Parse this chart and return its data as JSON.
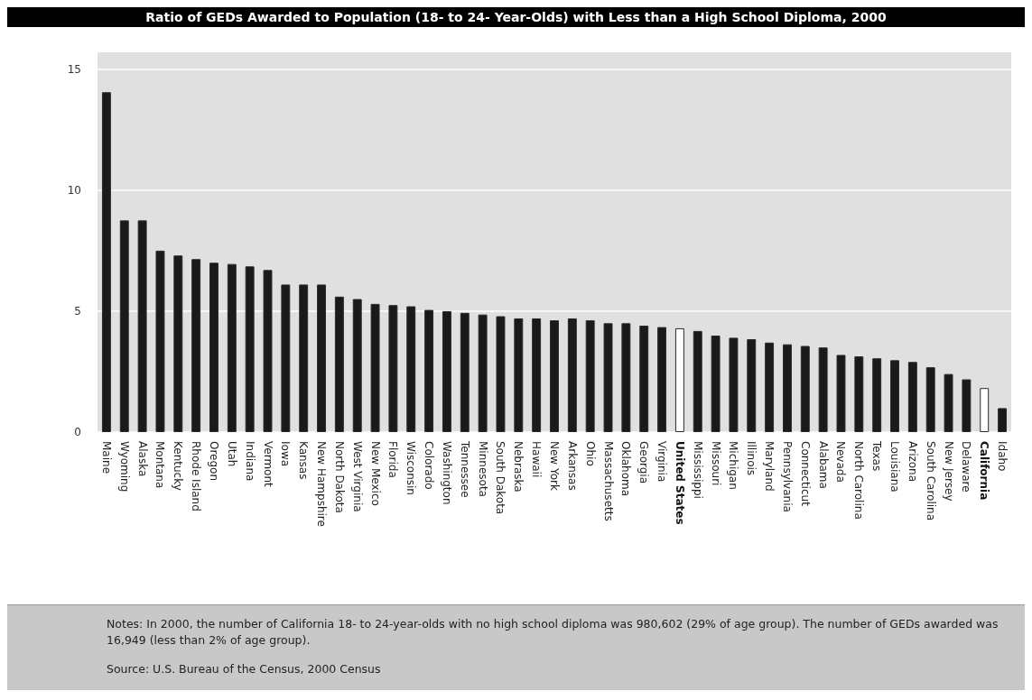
{
  "chart_data": {
    "type": "bar",
    "title": "Ratio of GEDs Awarded to Population (18- to 24- Year-Olds) with Less than a High School Diploma, 2000",
    "categories": [
      "Maine",
      "Wyoming",
      "Alaska",
      "Montana",
      "Kentucky",
      "Rhode Island",
      "Oregon",
      "Utah",
      "Indiana",
      "Vermont",
      "Iowa",
      "Kansas",
      "New Hampshire",
      "North Dakota",
      "West Virginia",
      "New Mexico",
      "Florida",
      "Wisconsin",
      "Colorado",
      "Washington",
      "Tennessee",
      "Minnesota",
      "South Dakota",
      "Nebraska",
      "Hawaii",
      "New York",
      "Arkansas",
      "Ohio",
      "Massachusetts",
      "Oklahoma",
      "Georgia",
      "Virginia",
      "United States",
      "Mississippi",
      "Missouri",
      "Michigan",
      "Illinois",
      "Maryland",
      "Pennsylvania",
      "Connecticut",
      "Alabama",
      "Nevada",
      "North Carolina",
      "Texas",
      "Louisiana",
      "Arizona",
      "South Carolina",
      "New Jersey",
      "Delaware",
      "California",
      "Idaho"
    ],
    "values": [
      14.05,
      8.75,
      8.75,
      7.5,
      7.3,
      7.15,
      7.0,
      6.95,
      6.85,
      6.7,
      6.1,
      6.1,
      6.1,
      5.6,
      5.5,
      5.3,
      5.25,
      5.2,
      5.05,
      5.0,
      4.93,
      4.86,
      4.79,
      4.7,
      4.7,
      4.62,
      4.7,
      4.62,
      4.5,
      4.5,
      4.4,
      4.34,
      4.29,
      4.18,
      3.99,
      3.9,
      3.84,
      3.7,
      3.63,
      3.56,
      3.5,
      3.19,
      3.13,
      3.05,
      2.97,
      2.9,
      2.68,
      2.4,
      2.18,
      1.82,
      0.99
    ],
    "colors": [
      "#1a1a1a",
      "#1a1a1a",
      "#1a1a1a",
      "#1a1a1a",
      "#1a1a1a",
      "#1a1a1a",
      "#1a1a1a",
      "#1a1a1a",
      "#1a1a1a",
      "#1a1a1a",
      "#1a1a1a",
      "#1a1a1a",
      "#1a1a1a",
      "#1a1a1a",
      "#1a1a1a",
      "#1a1a1a",
      "#1a1a1a",
      "#1a1a1a",
      "#1a1a1a",
      "#1a1a1a",
      "#1a1a1a",
      "#1a1a1a",
      "#1a1a1a",
      "#1a1a1a",
      "#1a1a1a",
      "#1a1a1a",
      "#1a1a1a",
      "#1a1a1a",
      "#1a1a1a",
      "#1a1a1a",
      "#1a1a1a",
      "#1a1a1a",
      "#ffffff",
      "#1a1a1a",
      "#1a1a1a",
      "#1a1a1a",
      "#1a1a1a",
      "#1a1a1a",
      "#1a1a1a",
      "#1a1a1a",
      "#1a1a1a",
      "#1a1a1a",
      "#1a1a1a",
      "#1a1a1a",
      "#1a1a1a",
      "#1a1a1a",
      "#1a1a1a",
      "#1a1a1a",
      "#1a1a1a",
      "#ffffff",
      "#1a1a1a"
    ],
    "ylim": [
      0,
      15.7
    ],
    "yticks": [
      0,
      5,
      10,
      15
    ],
    "grid": "y",
    "annotations": [
      "Notes: In 2000, the number of California 18- to 24-year-olds with no high school diploma was 980,602 (29% of age group). The number of GEDs awarded was 16,949 (less than 2% of age group).",
      "Source: U.S. Bureau of the Census, 2000 Census"
    ]
  }
}
